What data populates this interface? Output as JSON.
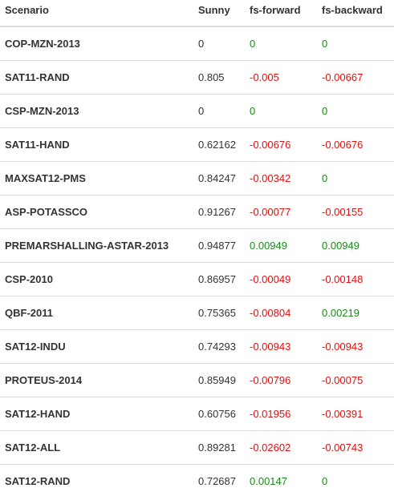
{
  "table": {
    "headers": [
      "Scenario",
      "Sunny",
      "fs-forward",
      "fs-backward"
    ],
    "colors": {
      "positive": "#1a8a1a",
      "negative": "#e01010"
    },
    "rows": [
      {
        "scenario": "COP-MZN-2013",
        "sunny": "0",
        "fwd": "0",
        "bwd": "0",
        "fwd_sign": "pos",
        "bwd_sign": "pos"
      },
      {
        "scenario": "SAT11-RAND",
        "sunny": "0.805",
        "fwd": "-0.005",
        "bwd": "-0.00667",
        "fwd_sign": "neg",
        "bwd_sign": "neg"
      },
      {
        "scenario": "CSP-MZN-2013",
        "sunny": "0",
        "fwd": "0",
        "bwd": "0",
        "fwd_sign": "pos",
        "bwd_sign": "pos"
      },
      {
        "scenario": "SAT11-HAND",
        "sunny": "0.62162",
        "fwd": "-0.00676",
        "bwd": "-0.00676",
        "fwd_sign": "neg",
        "bwd_sign": "neg"
      },
      {
        "scenario": "MAXSAT12-PMS",
        "sunny": "0.84247",
        "fwd": "-0.00342",
        "bwd": "0",
        "fwd_sign": "neg",
        "bwd_sign": "pos"
      },
      {
        "scenario": "ASP-POTASSCO",
        "sunny": "0.91267",
        "fwd": "-0.00077",
        "bwd": "-0.00155",
        "fwd_sign": "neg",
        "bwd_sign": "neg"
      },
      {
        "scenario": "PREMARSHALLING-ASTAR-2013",
        "sunny": "0.94877",
        "fwd": "0.00949",
        "bwd": "0.00949",
        "fwd_sign": "pos",
        "bwd_sign": "pos"
      },
      {
        "scenario": "CSP-2010",
        "sunny": "0.86957",
        "fwd": "-0.00049",
        "bwd": "-0.00148",
        "fwd_sign": "neg",
        "bwd_sign": "neg"
      },
      {
        "scenario": "QBF-2011",
        "sunny": "0.75365",
        "fwd": "-0.00804",
        "bwd": "0.00219",
        "fwd_sign": "neg",
        "bwd_sign": "pos"
      },
      {
        "scenario": "SAT12-INDU",
        "sunny": "0.74293",
        "fwd": "-0.00943",
        "bwd": "-0.00943",
        "fwd_sign": "neg",
        "bwd_sign": "neg"
      },
      {
        "scenario": "PROTEUS-2014",
        "sunny": "0.85949",
        "fwd": "-0.00796",
        "bwd": "-0.00075",
        "fwd_sign": "neg",
        "bwd_sign": "neg"
      },
      {
        "scenario": "SAT12-HAND",
        "sunny": "0.60756",
        "fwd": "-0.01956",
        "bwd": "-0.00391",
        "fwd_sign": "neg",
        "bwd_sign": "neg"
      },
      {
        "scenario": "SAT12-ALL",
        "sunny": "0.89281",
        "fwd": "-0.02602",
        "bwd": "-0.00743",
        "fwd_sign": "neg",
        "bwd_sign": "neg"
      },
      {
        "scenario": "SAT12-RAND",
        "sunny": "0.72687",
        "fwd": "0.00147",
        "bwd": "0",
        "fwd_sign": "pos",
        "bwd_sign": "pos"
      }
    ]
  }
}
